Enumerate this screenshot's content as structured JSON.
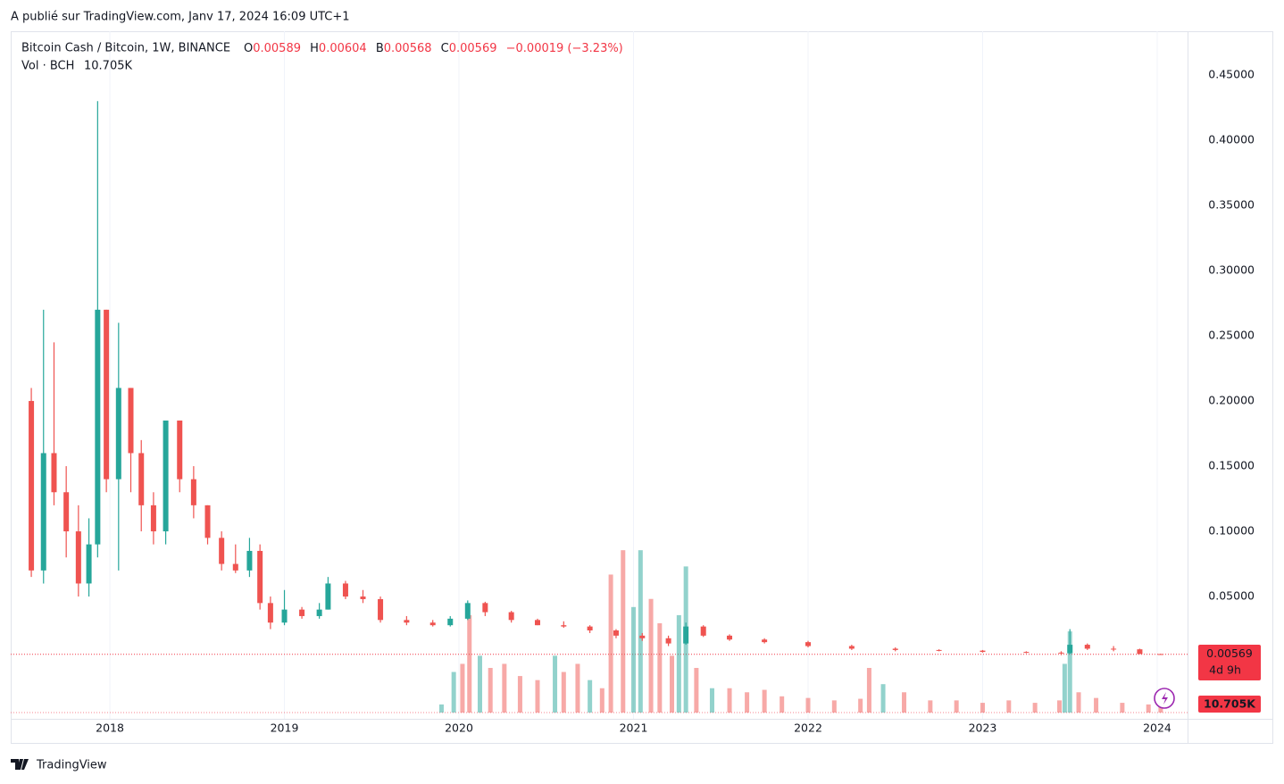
{
  "header": {
    "published": "A publié sur TradingView.com, Janv 17, 2024 16:09 UTC+1",
    "footer": "TradingView"
  },
  "legend": {
    "symbol": "Bitcoin Cash / Bitcoin, 1W, BINANCE",
    "o_label": "O",
    "o": "0.00589",
    "h_label": "H",
    "h": "0.00604",
    "l_label": "B",
    "l": "0.00568",
    "c_label": "C",
    "c": "0.00569",
    "change": "−0.00019 (−3.23%)",
    "vol_name": "Vol · BCH",
    "vol_value": "10.705K"
  },
  "chart_data": {
    "type": "candlestick",
    "up_color": "#26a69a",
    "down_color": "#ef5350",
    "grid": true,
    "xlim": [
      2017.432,
      2024.174
    ],
    "xticks": [
      2018,
      2019,
      2020,
      2021,
      2022,
      2023,
      2024
    ],
    "ylim": [
      -0.0438,
      0.4836
    ],
    "yticks": [
      {
        "value": 0.05,
        "label": "0.05000"
      },
      {
        "value": 0.1,
        "label": "0.10000"
      },
      {
        "value": 0.15,
        "label": "0.15000"
      },
      {
        "value": 0.2,
        "label": "0.20000"
      },
      {
        "value": 0.25,
        "label": "0.25000"
      },
      {
        "value": 0.3,
        "label": "0.30000"
      },
      {
        "value": 0.35,
        "label": "0.35000"
      },
      {
        "value": 0.4,
        "label": "0.40000"
      },
      {
        "value": 0.45,
        "label": "0.45000"
      }
    ],
    "x": [
      2017.55,
      2017.62,
      2017.68,
      2017.75,
      2017.82,
      2017.88,
      2017.93,
      2017.98,
      2018.05,
      2018.12,
      2018.18,
      2018.25,
      2018.32,
      2018.4,
      2018.48,
      2018.56,
      2018.64,
      2018.72,
      2018.8,
      2018.86,
      2018.92,
      2019.0,
      2019.1,
      2019.2,
      2019.25,
      2019.35,
      2019.45,
      2019.55,
      2019.7,
      2019.85,
      2019.95,
      2020.05,
      2020.15,
      2020.3,
      2020.45,
      2020.6,
      2020.75,
      2020.9,
      2021.05,
      2021.2,
      2021.3,
      2021.4,
      2021.55,
      2021.75,
      2022.0,
      2022.25,
      2022.5,
      2022.75,
      2023.0,
      2023.25,
      2023.45,
      2023.5,
      2023.6,
      2023.75,
      2023.9,
      2024.02
    ],
    "open": [
      0.2,
      0.07,
      0.16,
      0.13,
      0.1,
      0.06,
      0.09,
      0.27,
      0.14,
      0.21,
      0.16,
      0.12,
      0.1,
      0.185,
      0.14,
      0.12,
      0.095,
      0.075,
      0.07,
      0.085,
      0.045,
      0.03,
      0.04,
      0.035,
      0.04,
      0.06,
      0.05,
      0.048,
      0.032,
      0.03,
      0.028,
      0.033,
      0.045,
      0.038,
      0.032,
      0.028,
      0.027,
      0.024,
      0.02,
      0.018,
      0.014,
      0.027,
      0.02,
      0.017,
      0.015,
      0.012,
      0.01,
      0.009,
      0.0085,
      0.0075,
      0.007,
      0.0065,
      0.013,
      0.01,
      0.0095,
      0.00589
    ],
    "high": [
      0.21,
      0.27,
      0.245,
      0.15,
      0.12,
      0.11,
      0.43,
      0.27,
      0.26,
      0.21,
      0.17,
      0.13,
      0.185,
      0.185,
      0.15,
      0.12,
      0.1,
      0.09,
      0.095,
      0.09,
      0.05,
      0.055,
      0.042,
      0.045,
      0.065,
      0.062,
      0.055,
      0.05,
      0.035,
      0.032,
      0.035,
      0.047,
      0.046,
      0.039,
      0.033,
      0.031,
      0.028,
      0.025,
      0.022,
      0.02,
      0.03,
      0.028,
      0.021,
      0.018,
      0.016,
      0.013,
      0.011,
      0.0095,
      0.009,
      0.008,
      0.008,
      0.025,
      0.014,
      0.012,
      0.01,
      0.00604
    ],
    "low": [
      0.065,
      0.06,
      0.12,
      0.08,
      0.05,
      0.05,
      0.08,
      0.13,
      0.07,
      0.13,
      0.1,
      0.09,
      0.09,
      0.13,
      0.11,
      0.09,
      0.07,
      0.068,
      0.065,
      0.04,
      0.025,
      0.028,
      0.033,
      0.033,
      0.04,
      0.048,
      0.045,
      0.03,
      0.028,
      0.027,
      0.027,
      0.032,
      0.035,
      0.03,
      0.028,
      0.026,
      0.022,
      0.018,
      0.016,
      0.012,
      0.013,
      0.019,
      0.016,
      0.014,
      0.011,
      0.009,
      0.008,
      0.008,
      0.007,
      0.0065,
      0.005,
      0.006,
      0.009,
      0.008,
      0.007,
      0.00568
    ],
    "close": [
      0.07,
      0.16,
      0.13,
      0.1,
      0.06,
      0.09,
      0.27,
      0.14,
      0.21,
      0.16,
      0.12,
      0.1,
      0.185,
      0.14,
      0.12,
      0.095,
      0.075,
      0.07,
      0.085,
      0.045,
      0.03,
      0.04,
      0.035,
      0.04,
      0.06,
      0.05,
      0.048,
      0.032,
      0.03,
      0.028,
      0.033,
      0.045,
      0.038,
      0.032,
      0.028,
      0.027,
      0.024,
      0.02,
      0.018,
      0.014,
      0.027,
      0.02,
      0.017,
      0.015,
      0.012,
      0.01,
      0.009,
      0.0085,
      0.0075,
      0.007,
      0.0065,
      0.013,
      0.01,
      0.0095,
      0.0059,
      0.00569
    ],
    "last_price": 0.00569,
    "countdown": "4d 9h",
    "volume": {
      "vlim": [
        0,
        220
      ],
      "x": [
        2019.9,
        2019.97,
        2020.02,
        2020.06,
        2020.12,
        2020.18,
        2020.26,
        2020.35,
        2020.45,
        2020.55,
        2020.6,
        2020.68,
        2020.75,
        2020.82,
        2020.87,
        2020.94,
        2021.0,
        2021.04,
        2021.1,
        2021.15,
        2021.22,
        2021.26,
        2021.3,
        2021.36,
        2021.45,
        2021.55,
        2021.65,
        2021.75,
        2021.85,
        2022.0,
        2022.15,
        2022.3,
        2022.35,
        2022.43,
        2022.55,
        2022.7,
        2022.85,
        2023.0,
        2023.15,
        2023.3,
        2023.44,
        2023.47,
        2023.5,
        2023.55,
        2023.65,
        2023.8,
        2023.95,
        2024.02
      ],
      "values": [
        10,
        50,
        60,
        120,
        70,
        55,
        60,
        45,
        40,
        70,
        50,
        60,
        40,
        30,
        170,
        200,
        130,
        200,
        140,
        110,
        70,
        120,
        180,
        55,
        30,
        30,
        25,
        28,
        20,
        18,
        15,
        17,
        55,
        35,
        25,
        15,
        15,
        12,
        15,
        12,
        15,
        60,
        100,
        25,
        18,
        12,
        10,
        10.705
      ],
      "directions": [
        "up",
        "up",
        "down",
        "down",
        "up",
        "down",
        "down",
        "down",
        "down",
        "up",
        "down",
        "down",
        "up",
        "down",
        "down",
        "down",
        "up",
        "up",
        "down",
        "down",
        "down",
        "up",
        "up",
        "down",
        "up",
        "down",
        "down",
        "down",
        "down",
        "down",
        "down",
        "down",
        "down",
        "up",
        "down",
        "down",
        "down",
        "down",
        "down",
        "down",
        "down",
        "up",
        "up",
        "down",
        "down",
        "down",
        "down",
        "down"
      ]
    }
  }
}
